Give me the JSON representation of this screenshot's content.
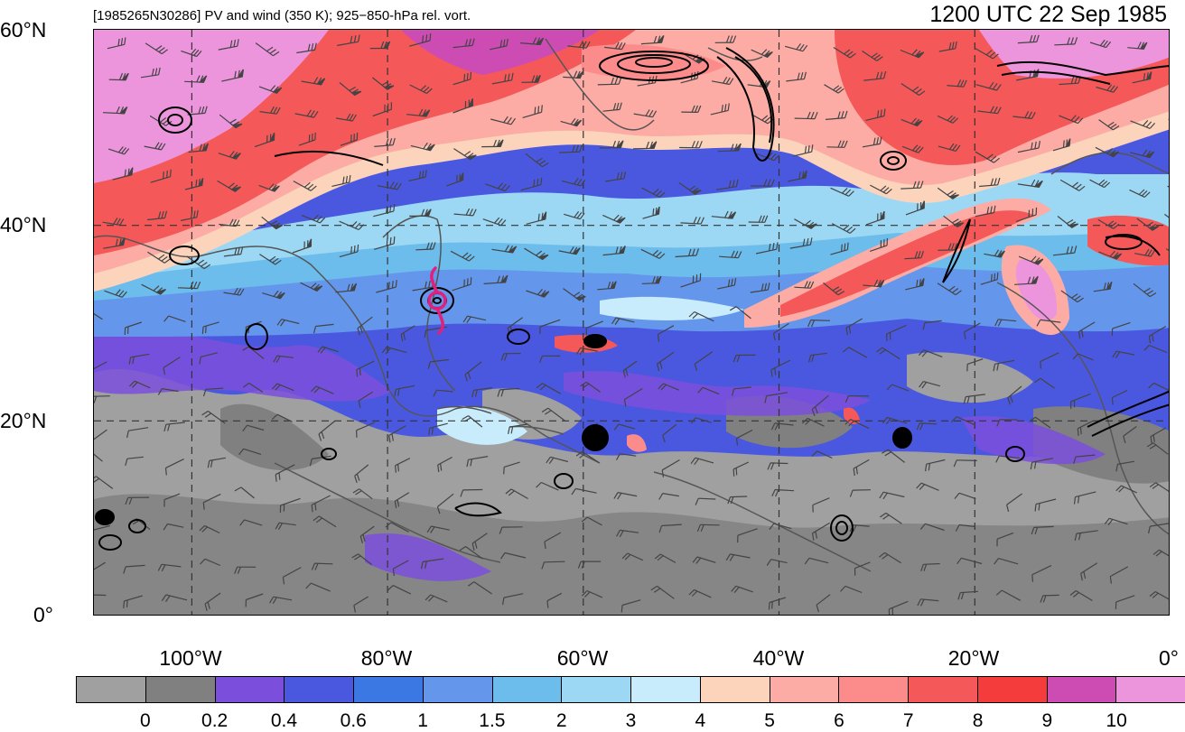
{
  "header": {
    "title_left": "[1985265N30286] PV and wind (350 K); 925−850-hPa rel. vort.",
    "title_right": "1200 UTC 22 Sep 1985"
  },
  "axes": {
    "lat_labels": [
      "60°N",
      "40°N",
      "20°N",
      "0°"
    ],
    "lon_labels": [
      "100°W",
      "80°W",
      "60°W",
      "40°W",
      "20°W",
      "0°"
    ],
    "lat_range": [
      0,
      60
    ],
    "lon_range": [
      -110,
      0
    ],
    "grid": "dashed"
  },
  "colorbar": {
    "colors": [
      "#a0a0a0",
      "#808080",
      "#7b4fdc",
      "#4a58e0",
      "#3c78e4",
      "#6497ec",
      "#6cbcec",
      "#9cd8f4",
      "#c8ecfc",
      "#fcd4bc",
      "#fcaca4",
      "#fc8c8c",
      "#f45858",
      "#f43c3c",
      "#cc4cb4",
      "#ec94dc"
    ],
    "labels": [
      "0",
      "0.2",
      "0.4",
      "0.6",
      "1",
      "1.5",
      "2",
      "3",
      "4",
      "5",
      "6",
      "7",
      "8",
      "9",
      "10"
    ]
  },
  "storm": {
    "marker_color": "#e0207c",
    "lat": 32.5,
    "lon": -75
  }
}
